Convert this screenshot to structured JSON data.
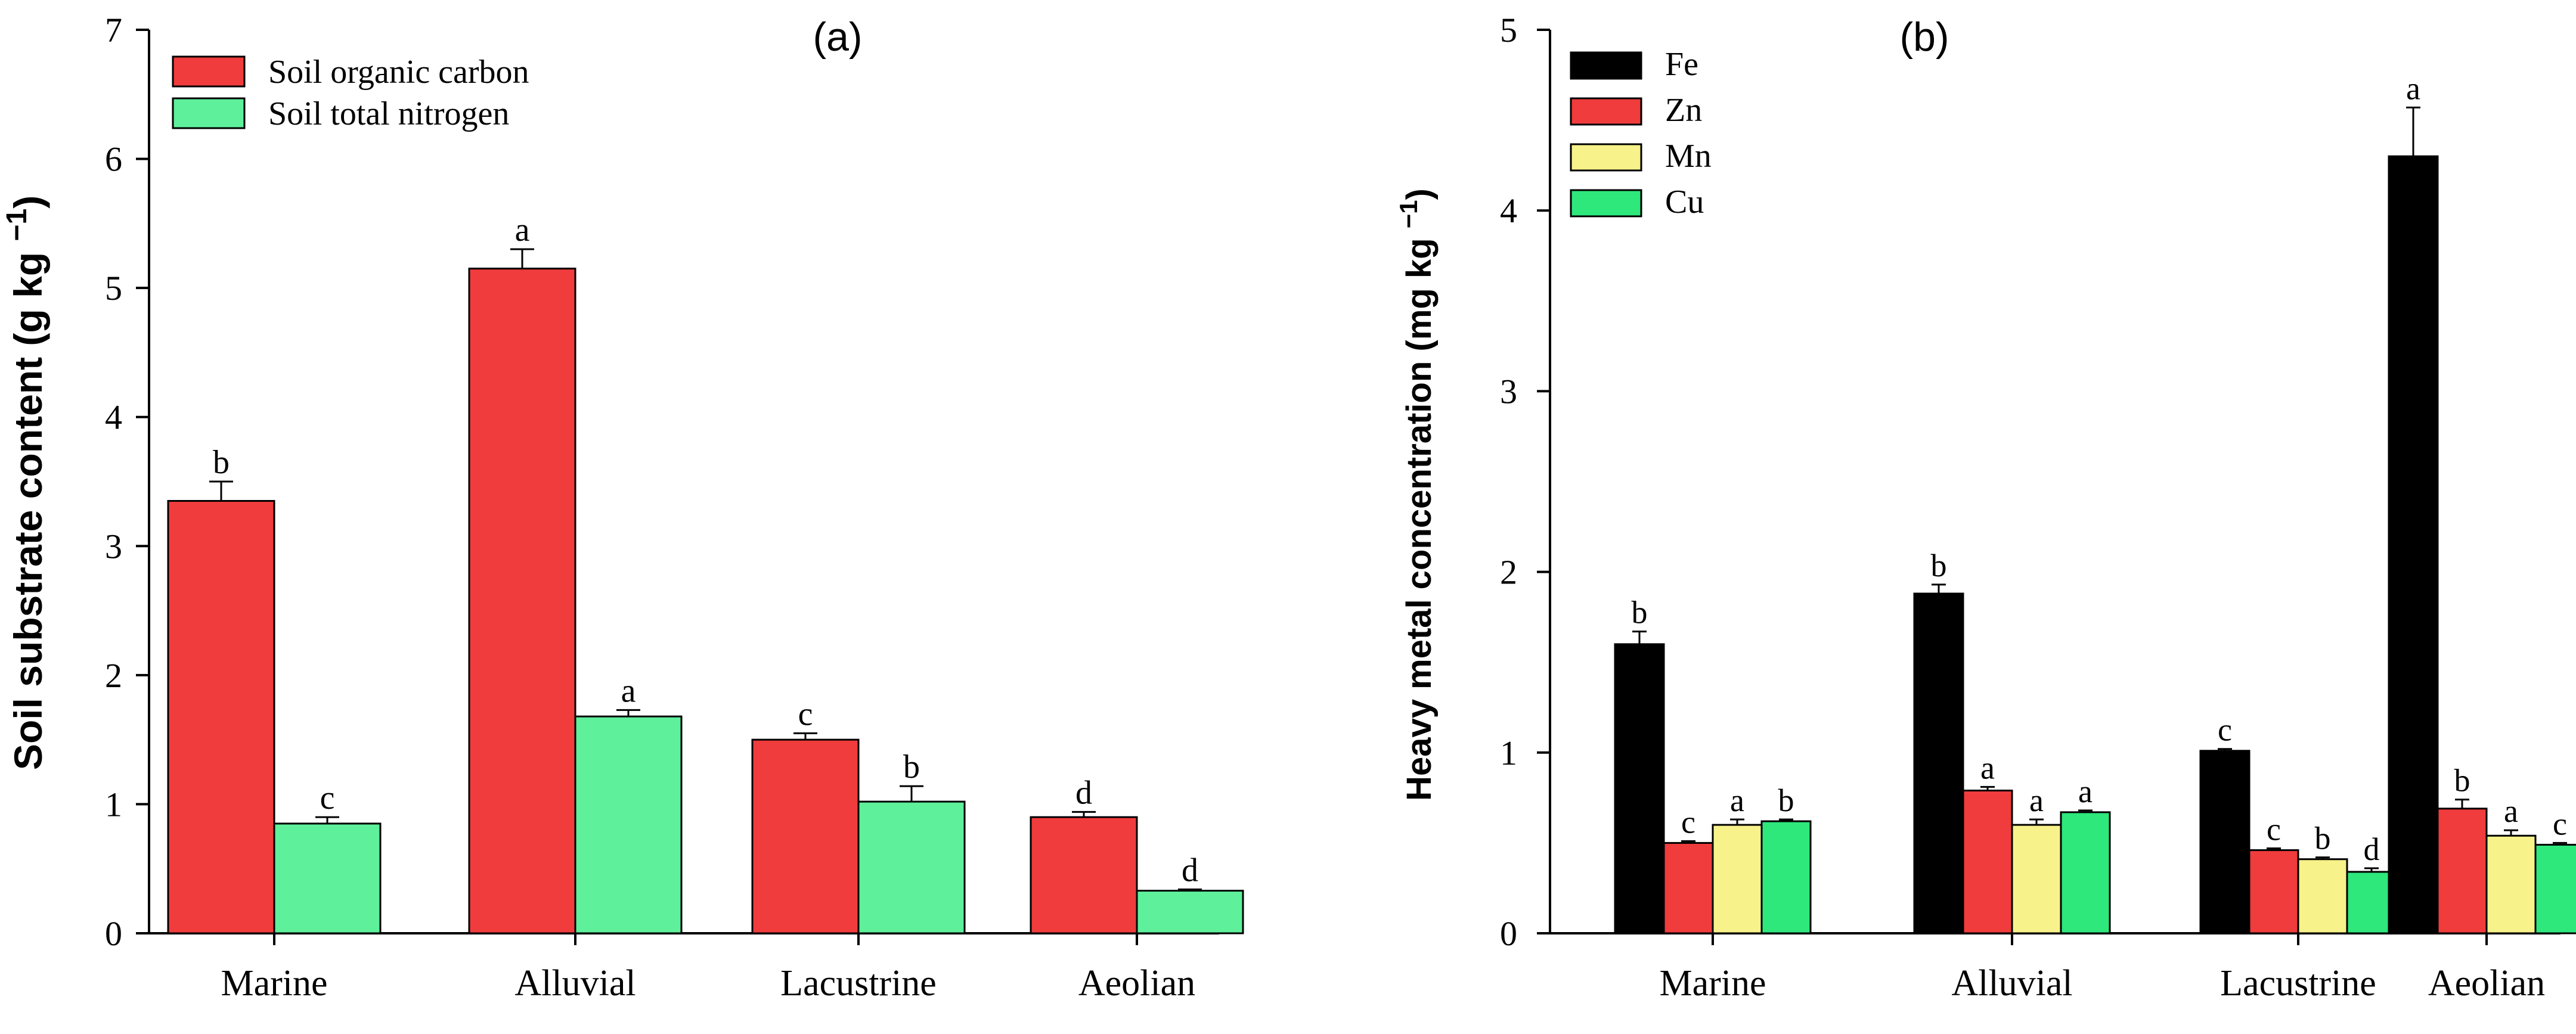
{
  "chart_data": [
    {
      "type": "bar",
      "panel_label": "(a)",
      "ylabel": "Soil substrate content (g kg −1)",
      "ylabel_parts": {
        "main": "Soil substrate content  (g kg ",
        "sup": "−1",
        "end": ")"
      },
      "xlabel": "",
      "ylim": [
        0,
        7
      ],
      "yticks": [
        0,
        1,
        2,
        3,
        4,
        5,
        6,
        7
      ],
      "categories": [
        "Marine",
        "Alluvial",
        "Lacustrine",
        "Aeolian"
      ],
      "legend_position": "top-left",
      "series": [
        {
          "name": "Soil organic carbon",
          "color": "#f03c3c",
          "values": [
            3.35,
            5.15,
            1.5,
            0.9
          ],
          "errors": [
            0.15,
            0.15,
            0.05,
            0.04
          ],
          "letters": [
            "b",
            "a",
            "c",
            "d"
          ]
        },
        {
          "name": "Soil total nitrogen",
          "color": "#5ef09a",
          "values": [
            0.85,
            1.68,
            1.02,
            0.33
          ],
          "errors": [
            0.05,
            0.05,
            0.12,
            0.01
          ],
          "letters": [
            "c",
            "a",
            "b",
            "d"
          ]
        }
      ]
    },
    {
      "type": "bar",
      "panel_label": "(b)",
      "ylabel": "Heavy metal concentration (mg kg −1)",
      "ylabel_parts": {
        "main": "Heavy metal concentration  (mg kg ",
        "sup": "−1",
        "end": ")"
      },
      "xlabel": "",
      "ylim": [
        0,
        5
      ],
      "yticks": [
        0,
        1,
        2,
        3,
        4,
        5
      ],
      "categories": [
        "Marine",
        "Alluvial",
        "Lacustrine",
        "Aeolian"
      ],
      "legend_position": "top-left",
      "series": [
        {
          "name": "Fe",
          "color": "#000000",
          "values": [
            1.6,
            1.88,
            1.01,
            4.3
          ],
          "errors": [
            0.07,
            0.05,
            0.01,
            0.27
          ],
          "letters": [
            "b",
            "b",
            "c",
            "a"
          ]
        },
        {
          "name": "Zn",
          "color": "#f03c3c",
          "values": [
            0.5,
            0.79,
            0.46,
            0.69
          ],
          "errors": [
            0.01,
            0.02,
            0.01,
            0.05
          ],
          "letters": [
            "c",
            "a",
            "c",
            "b"
          ]
        },
        {
          "name": "Mn",
          "color": "#f7f28a",
          "values": [
            0.6,
            0.6,
            0.41,
            0.54
          ],
          "errors": [
            0.03,
            0.03,
            0.01,
            0.03
          ],
          "letters": [
            "a",
            "a",
            "b",
            "a"
          ]
        },
        {
          "name": "Cu",
          "color": "#2ee87c",
          "values": [
            0.62,
            0.67,
            0.34,
            0.49
          ],
          "errors": [
            0.01,
            0.01,
            0.02,
            0.01
          ],
          "letters": [
            "b",
            "a",
            "d",
            "c"
          ]
        }
      ]
    }
  ]
}
